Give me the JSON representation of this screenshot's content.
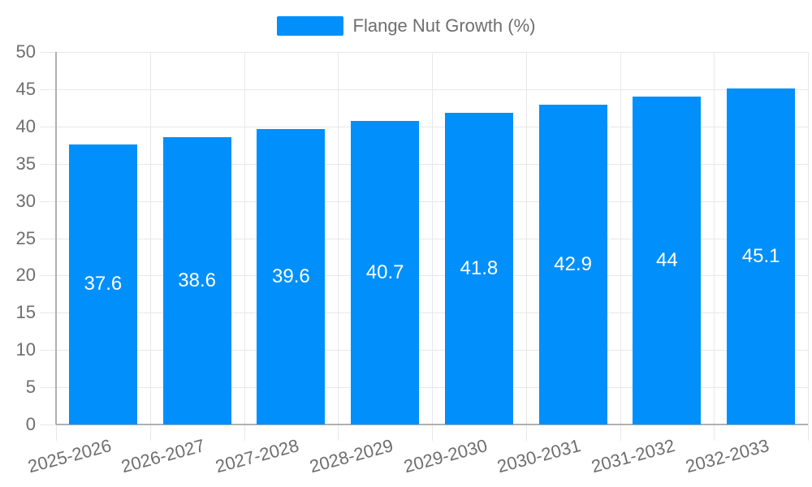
{
  "chart_data": {
    "type": "bar",
    "title": "Flange Nut Growth (%)",
    "legend_label": "Flange Nut Growth (%)",
    "legend_position": "top",
    "categories": [
      "2025-2026",
      "2026-2027",
      "2027-2028",
      "2028-2029",
      "2029-2030",
      "2030-2031",
      "2031-2032",
      "2032-2033"
    ],
    "values": [
      37.6,
      38.6,
      39.6,
      40.7,
      41.8,
      42.9,
      44,
      45.1
    ],
    "value_labels": [
      "37.6",
      "38.6",
      "39.6",
      "40.7",
      "41.8",
      "42.9",
      "44",
      "45.1"
    ],
    "xlabel": "",
    "ylabel": "",
    "ylim": [
      0,
      50
    ],
    "yticks": [
      0,
      5,
      10,
      15,
      20,
      25,
      30,
      35,
      40,
      45,
      50
    ],
    "grid": true,
    "x_label_rotation_deg": -15,
    "colors": {
      "series": "#008FFB",
      "value_text": "#ffffff",
      "axis_text": "#6e6e6e",
      "legend_text": "#6e6e6e",
      "gridline": "#e8e8e8",
      "axis_line": "#b0b0b0",
      "background": "#ffffff"
    }
  }
}
